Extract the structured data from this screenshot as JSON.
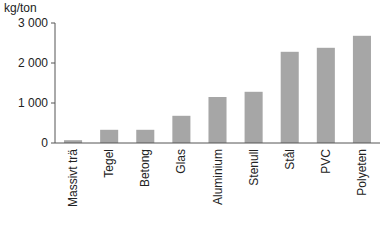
{
  "chart_data": {
    "type": "bar",
    "y_label": "kg/ton",
    "categories": [
      "Massivt trä",
      "Tegel",
      "Betong",
      "Glas",
      "Aluminium",
      "Stenull",
      "Stål",
      "PVC",
      "Polyeten"
    ],
    "values": [
      70,
      330,
      330,
      680,
      1150,
      1280,
      2280,
      2380,
      2680
    ],
    "color": "#a6a6a6",
    "ylim": [
      0,
      3000
    ],
    "yticks": [
      0,
      {
        "value": 1000,
        "label": "1 000"
      },
      {
        "value": 2000,
        "label": "2 000"
      },
      {
        "value": 3000,
        "label": "3 000"
      }
    ],
    "grid": false
  }
}
